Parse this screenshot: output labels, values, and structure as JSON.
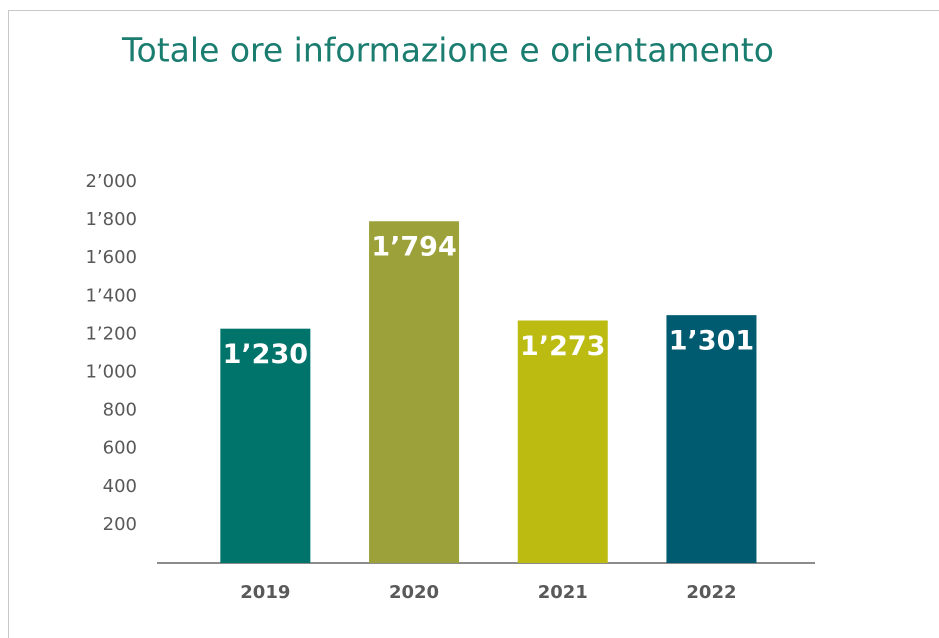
{
  "chart_data": {
    "type": "bar",
    "title": "Totale ore informazione  e orientamento",
    "categories": [
      "2019",
      "2020",
      "2021",
      "2022"
    ],
    "values": [
      1230,
      1794,
      1273,
      1301
    ],
    "value_labels": [
      "1’230",
      "1’794",
      "1’273",
      "1’301"
    ],
    "colors": [
      "#00736a",
      "#9ca13a",
      "#bcbb12",
      "#005a70"
    ],
    "ylim": [
      0,
      2000
    ],
    "yticks": [
      200,
      400,
      600,
      800,
      {
        "value": 1000,
        "label": "1’000"
      },
      {
        "value": 1200,
        "label": "1’200"
      },
      {
        "value": 1400,
        "label": "1’400"
      },
      {
        "value": 1600,
        "label": "1’600"
      },
      {
        "value": 1800,
        "label": "1’800"
      },
      {
        "value": 2000,
        "label": "2’000"
      }
    ]
  }
}
